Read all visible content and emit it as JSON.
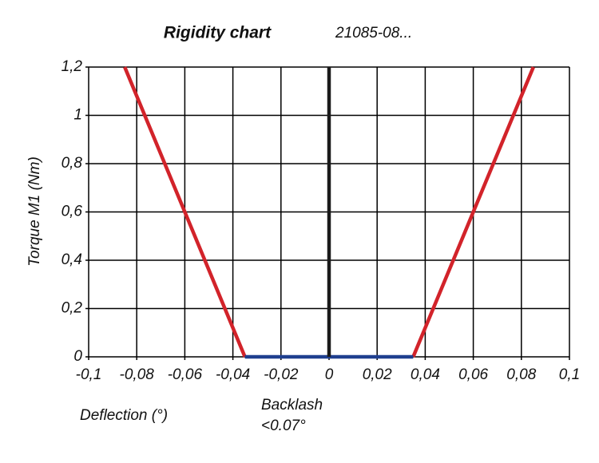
{
  "chart_data": {
    "type": "line",
    "title": "Rigidity chart",
    "subtitle": "21085-08...",
    "x_label": "Deflection (°)",
    "y_label": "Torque M1 (Nm)",
    "annotation": [
      "Backlash",
      "<0.07°"
    ],
    "xlim": [
      -0.1,
      0.1
    ],
    "xticks": [
      {
        "value": -0.1,
        "label": "-0,1"
      },
      {
        "value": -0.08,
        "label": "-0,08"
      },
      {
        "value": -0.06,
        "label": "-0,06"
      },
      {
        "value": -0.04,
        "label": "-0,04"
      },
      {
        "value": -0.02,
        "label": "-0,02"
      },
      0,
      {
        "value": 0.02,
        "label": "0,02"
      },
      {
        "value": 0.04,
        "label": "0,04"
      },
      {
        "value": 0.06,
        "label": "0,06"
      },
      {
        "value": 0.08,
        "label": "0,08"
      },
      {
        "value": 0.1,
        "label": "0,1"
      }
    ],
    "ylim": [
      0,
      1.2
    ],
    "yticks": [
      0,
      {
        "value": 0.2,
        "label": "0,2"
      },
      {
        "value": 0.4,
        "label": "0,4"
      },
      {
        "value": 0.6,
        "label": "0,6"
      },
      {
        "value": 0.8,
        "label": "0,8"
      },
      1,
      {
        "value": 1.2,
        "label": "1,2"
      }
    ],
    "grid": true,
    "series": [
      {
        "color": "#d2232a",
        "x": [
          -0.085,
          -0.035
        ],
        "values": [
          1.2,
          0
        ]
      },
      {
        "color": "#d2232a",
        "x": [
          0.035,
          0.085
        ],
        "values": [
          0,
          1.2
        ]
      },
      {
        "color": "#1f3f8f",
        "x": [
          -0.035,
          0.035
        ],
        "values": [
          0,
          0
        ]
      },
      {
        "color": "#1a1a1a",
        "x": [
          0,
          0
        ],
        "values": [
          0,
          1.2
        ]
      }
    ]
  }
}
